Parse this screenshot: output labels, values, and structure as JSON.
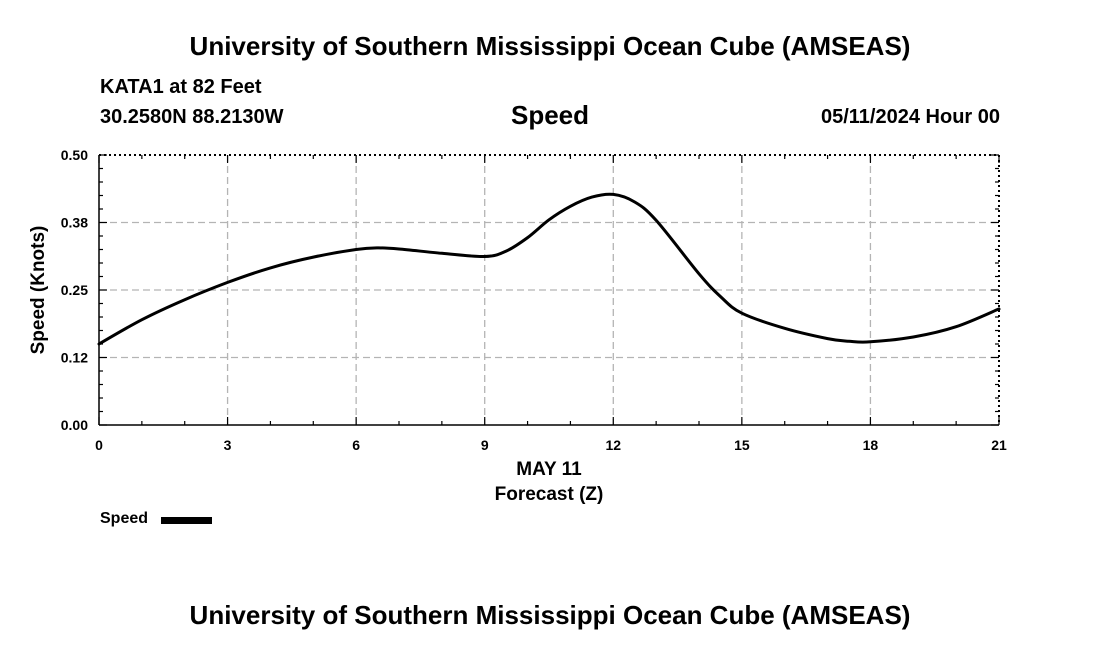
{
  "header": {
    "title": "University of Southern Mississippi Ocean Cube (AMSEAS)",
    "station": "KATA1 at 82 Feet",
    "coords": "30.2580N  88.2130W",
    "datetime": "05/11/2024 Hour 00"
  },
  "footer": {
    "title": "University of Southern Mississippi Ocean Cube (AMSEAS)"
  },
  "legend": {
    "label": "Speed"
  },
  "colors": {
    "line": "#000000",
    "grid": "#b4b4b4"
  },
  "chart_data": {
    "type": "line",
    "title": "Speed",
    "xlabel": "Forecast (Z)",
    "xsublabel": "MAY 11",
    "ylabel": "Speed (Knots)",
    "xlim": [
      0,
      21
    ],
    "ylim": [
      0,
      0.5
    ],
    "xticks": [
      0,
      3,
      6,
      9,
      12,
      15,
      18,
      21
    ],
    "xtick_labels": [
      "0",
      "3",
      "6",
      "9",
      "12",
      "15",
      "18",
      "21"
    ],
    "yticks": [
      0,
      0.125,
      0.25,
      0.375,
      0.5
    ],
    "ytick_labels": [
      "0.00",
      "0.12",
      "0.25",
      "0.38",
      "0.50"
    ],
    "grid": true,
    "series": [
      {
        "name": "Speed",
        "x": [
          0,
          1,
          2,
          3,
          4,
          5,
          6,
          6.5,
          7,
          8,
          9,
          9.5,
          10,
          10.5,
          11,
          11.5,
          12,
          12.5,
          13,
          14,
          14.5,
          15,
          16,
          17,
          17.5,
          18,
          19,
          20,
          21
        ],
        "y": [
          0.15,
          0.195,
          0.232,
          0.264,
          0.291,
          0.311,
          0.325,
          0.328,
          0.326,
          0.318,
          0.312,
          0.322,
          0.347,
          0.38,
          0.405,
          0.422,
          0.427,
          0.413,
          0.379,
          0.28,
          0.238,
          0.207,
          0.179,
          0.16,
          0.155,
          0.154,
          0.163,
          0.182,
          0.215
        ]
      }
    ]
  }
}
